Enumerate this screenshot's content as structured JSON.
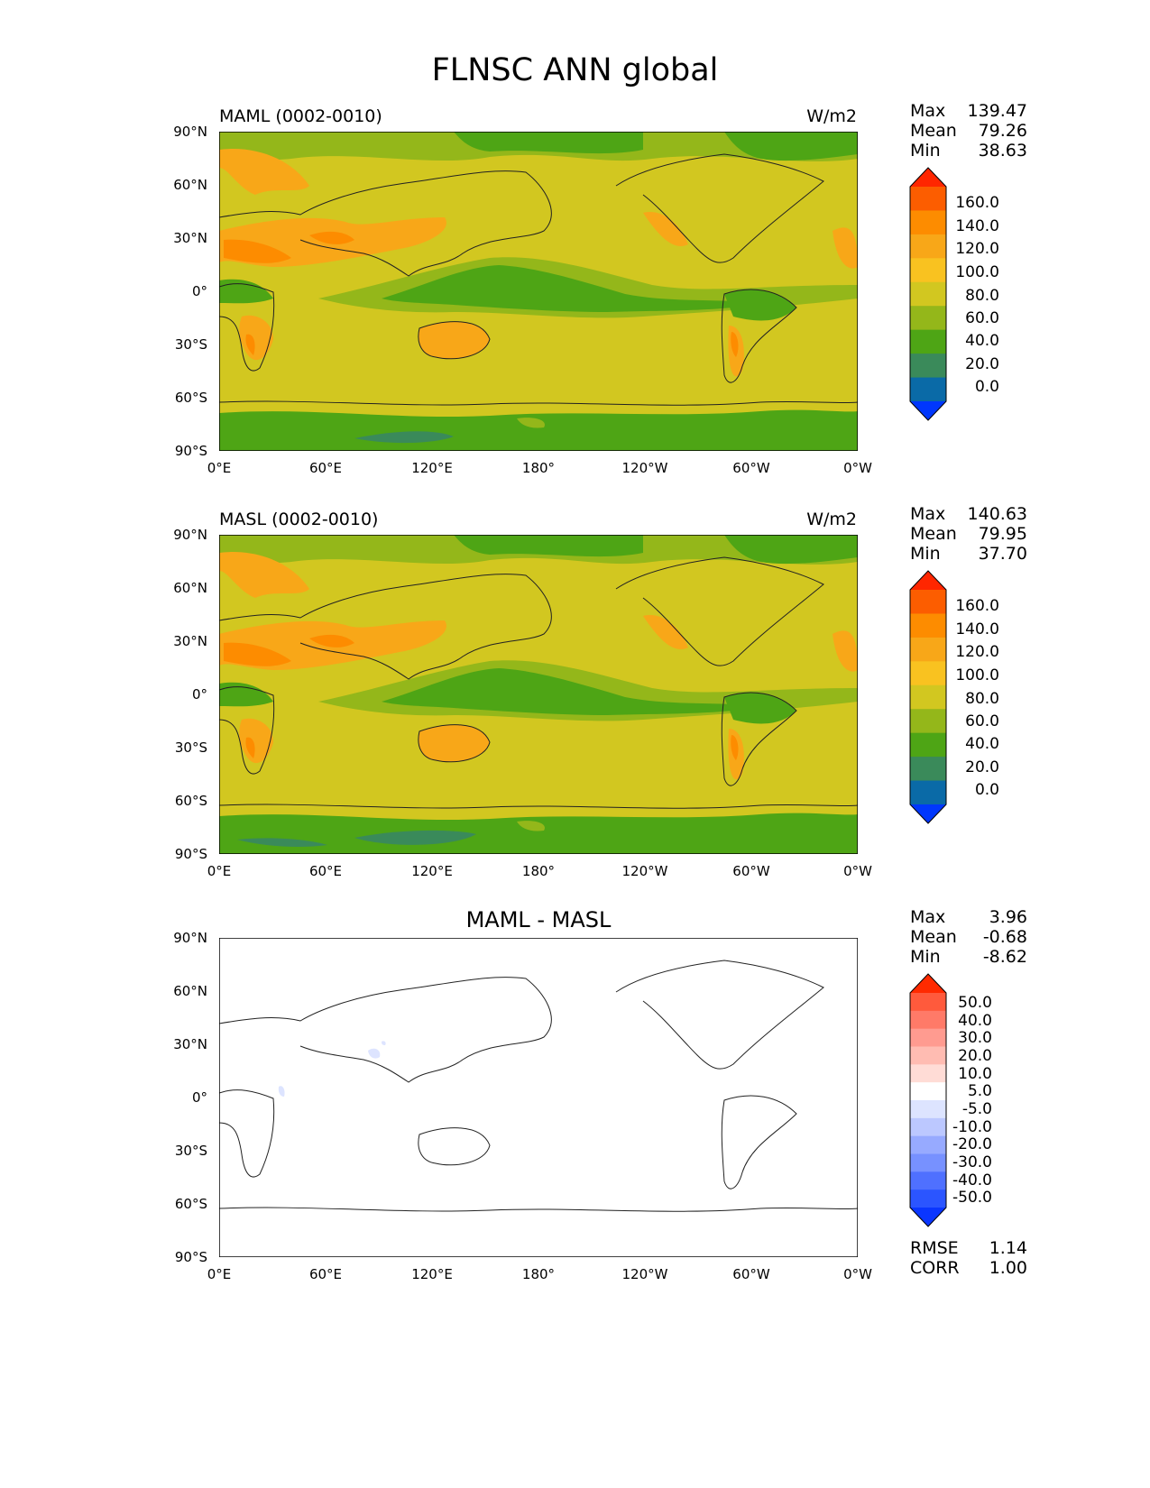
{
  "title": "FLNSC ANN global",
  "lat_ticks": [
    "90°N",
    "60°N",
    "30°N",
    "0°",
    "30°S",
    "60°S",
    "90°S"
  ],
  "lon_ticks": [
    "0°E",
    "60°E",
    "120°E",
    "180°",
    "120°W",
    "60°W",
    "0°W"
  ],
  "panels": [
    {
      "id": "test",
      "label": "MAML (0002-0010)",
      "units": "W/m2",
      "stats": {
        "max_label": "Max",
        "max": "139.47",
        "mean_label": "Mean",
        "mean": "79.26",
        "min_label": "Min",
        "min": "38.63"
      },
      "colorbar": {
        "levels": [
          "160.0",
          "140.0",
          "120.0",
          "100.0",
          "80.0",
          "60.0",
          "40.0",
          "20.0",
          "0.0"
        ],
        "colors": [
          "#ff2600",
          "#fc5d00",
          "#fd8c00",
          "#f8a718",
          "#f9c220",
          "#d2c720",
          "#94b71a",
          "#4ea515",
          "#3a8a5a",
          "#0a6aa7",
          "#0037fd"
        ]
      }
    },
    {
      "id": "ref",
      "label": "MASL (0002-0010)",
      "units": "W/m2",
      "stats": {
        "max_label": "Max",
        "max": "140.63",
        "mean_label": "Mean",
        "mean": "79.95",
        "min_label": "Min",
        "min": "37.70"
      },
      "colorbar": {
        "levels": [
          "160.0",
          "140.0",
          "120.0",
          "100.0",
          "80.0",
          "60.0",
          "40.0",
          "20.0",
          "0.0"
        ],
        "colors": [
          "#ff2600",
          "#fc5d00",
          "#fd8c00",
          "#f8a718",
          "#f9c220",
          "#d2c720",
          "#94b71a",
          "#4ea515",
          "#3a8a5a",
          "#0a6aa7",
          "#0037fd"
        ]
      }
    },
    {
      "id": "diff",
      "label": "MAML - MASL",
      "stats": {
        "max_label": "Max",
        "max": "3.96",
        "mean_label": "Mean",
        "mean": "-0.68",
        "min_label": "Min",
        "min": "-8.62"
      },
      "colorbar": {
        "levels": [
          "50.0",
          "40.0",
          "30.0",
          "20.0",
          "10.0",
          "5.0",
          "-5.0",
          "-10.0",
          "-20.0",
          "-30.0",
          "-40.0",
          "-50.0"
        ],
        "colors": [
          "#ff2a00",
          "#ff5a3c",
          "#ff7a68",
          "#ff9b90",
          "#ffbcb2",
          "#ffdcd6",
          "#ffffff",
          "#dde4ff",
          "#bcc8ff",
          "#97aaff",
          "#7791ff",
          "#4f70ff",
          "#2b55ff",
          "#0a36ff"
        ]
      },
      "rmse_label": "RMSE",
      "rmse": "1.14",
      "corr_label": "CORR",
      "corr": "1.00"
    }
  ],
  "map_colors": {
    "ocean": "#d2c720",
    "polar": "#4ea515",
    "mid": "#94b71a",
    "warm": "#f8a718",
    "hot": "#fd8c00",
    "deep": "#3a8a5a",
    "diff_bg": "#ffffff",
    "diff_blue": "#dde4ff"
  }
}
